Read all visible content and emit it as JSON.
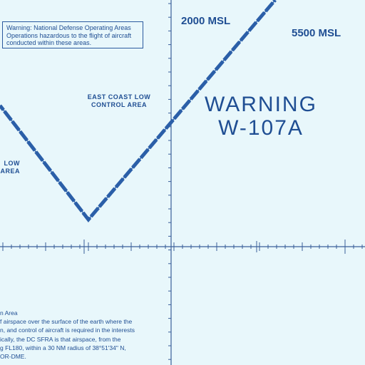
{
  "warning_note": {
    "line1": "Warning: National Defense Operating Areas",
    "line2": "Operations hazardous to the flight of aircraft",
    "line3": "conducted within these areas."
  },
  "altitudes": {
    "left": "2000 MSL",
    "right": "5500 MSL"
  },
  "east_coast_area": {
    "line1": "EAST COAST LOW",
    "line2": "CONTROL AREA"
  },
  "clipped_area": {
    "line1": "LOW",
    "line2": "AREA"
  },
  "warning_area": {
    "line1": "WARNING",
    "line2": "W-107A"
  },
  "legal_text": {
    "line1": "n Area",
    "line2": "f airspace over the surface of the earth where the",
    "line3": "n, and control of aircraft is required in the interests",
    "line4": "ically, the DC SFRA is that airspace, from the",
    "line5": "g FL180, within a 30 NM radius of 38°51'34\" N,",
    "line6": "OR-DME."
  },
  "colors": {
    "background": "#e8f7fb",
    "boundary": "#2b5fa8",
    "text": "#1f4e93"
  }
}
